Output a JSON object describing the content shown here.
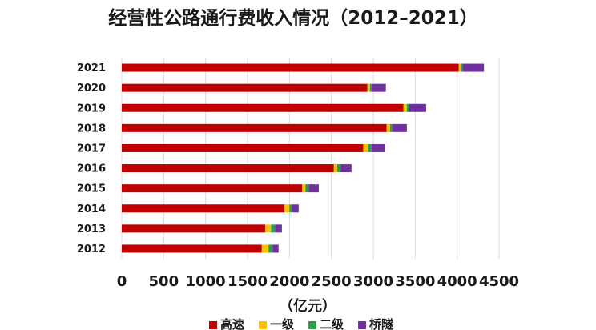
{
  "chart_data": {
    "type": "bar",
    "orientation": "horizontal",
    "stacked": true,
    "title": "经营性公路通行费收入情况（2012–2021）",
    "xlabel": "（亿元）",
    "ylabel": "",
    "xlim": [
      0,
      4500
    ],
    "xticks": [
      0,
      500,
      1000,
      1500,
      2000,
      2500,
      3000,
      3500,
      4000,
      4500
    ],
    "grid": true,
    "legend_position": "bottom",
    "categories": [
      "2021",
      "2020",
      "2019",
      "2018",
      "2017",
      "2016",
      "2015",
      "2014",
      "2013",
      "2012"
    ],
    "series": [
      {
        "name": "高速",
        "color": "#c00000",
        "values": [
          4020,
          2930,
          3360,
          3160,
          2880,
          2530,
          2150,
          1940,
          1710,
          1670
        ]
      },
      {
        "name": "一级",
        "color": "#ffc000",
        "values": [
          30,
          30,
          40,
          40,
          60,
          40,
          40,
          60,
          70,
          80
        ]
      },
      {
        "name": "二级",
        "color": "#2e9b47",
        "values": [
          20,
          20,
          30,
          30,
          40,
          40,
          40,
          30,
          50,
          50
        ]
      },
      {
        "name": "桥隧",
        "color": "#7030a0",
        "values": [
          250,
          170,
          200,
          170,
          160,
          130,
          120,
          80,
          80,
          70
        ]
      }
    ]
  }
}
